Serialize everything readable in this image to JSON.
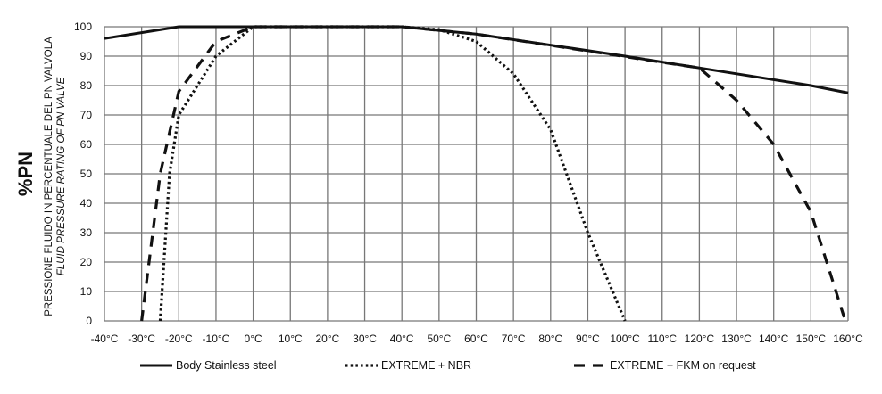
{
  "chart_data": {
    "type": "line",
    "ylabel_main": "%PN",
    "ylabel_it": "PRESSIONE FLUIDO IN PERCENTUALE DEL PN VALVOLA",
    "ylabel_en": "FLUID PRESSURE RATING OF PN VALVE",
    "xlim": [
      -40,
      160
    ],
    "ylim": [
      0,
      100
    ],
    "grid": true,
    "legend_position": "bottom",
    "x_ticks": [
      "-40°C",
      "-30°C",
      "-20°C",
      "-10°C",
      "0°C",
      "10°C",
      "20°C",
      "30°C",
      "40°C",
      "50°C",
      "60°C",
      "70°C",
      "80°C",
      "90°C",
      "100°C",
      "110°C",
      "120°C",
      "130°C",
      "140°C",
      "150°C",
      "160°C"
    ],
    "y_ticks": [
      "0",
      "10",
      "20",
      "30",
      "40",
      "50",
      "60",
      "70",
      "80",
      "90",
      "100"
    ],
    "series": [
      {
        "name": "Body Stainless steel",
        "style": "solid",
        "points": [
          [
            -40,
            96
          ],
          [
            -20,
            100
          ],
          [
            40,
            100
          ],
          [
            60,
            97.5
          ],
          [
            100,
            90
          ],
          [
            120,
            86
          ],
          [
            150,
            80
          ],
          [
            160,
            77.5
          ]
        ]
      },
      {
        "name": "EXTREME + NBR",
        "style": "dotted",
        "points": [
          [
            -25,
            0
          ],
          [
            -22.5,
            50
          ],
          [
            -20,
            70
          ],
          [
            -10,
            90
          ],
          [
            0,
            100
          ],
          [
            40,
            100
          ],
          [
            50,
            99
          ],
          [
            60,
            95
          ],
          [
            70,
            84
          ],
          [
            80,
            65
          ],
          [
            90,
            30
          ],
          [
            100,
            0
          ]
        ]
      },
      {
        "name": "EXTREME + FKM on request",
        "style": "dashed",
        "points": [
          [
            -30,
            0
          ],
          [
            -25,
            50
          ],
          [
            -20,
            78
          ],
          [
            -10,
            95
          ],
          [
            0,
            100
          ],
          [
            40,
            100
          ],
          [
            60,
            97.5
          ],
          [
            120,
            86
          ],
          [
            130,
            75
          ],
          [
            140,
            60
          ],
          [
            150,
            37
          ],
          [
            159,
            1
          ]
        ]
      }
    ]
  }
}
